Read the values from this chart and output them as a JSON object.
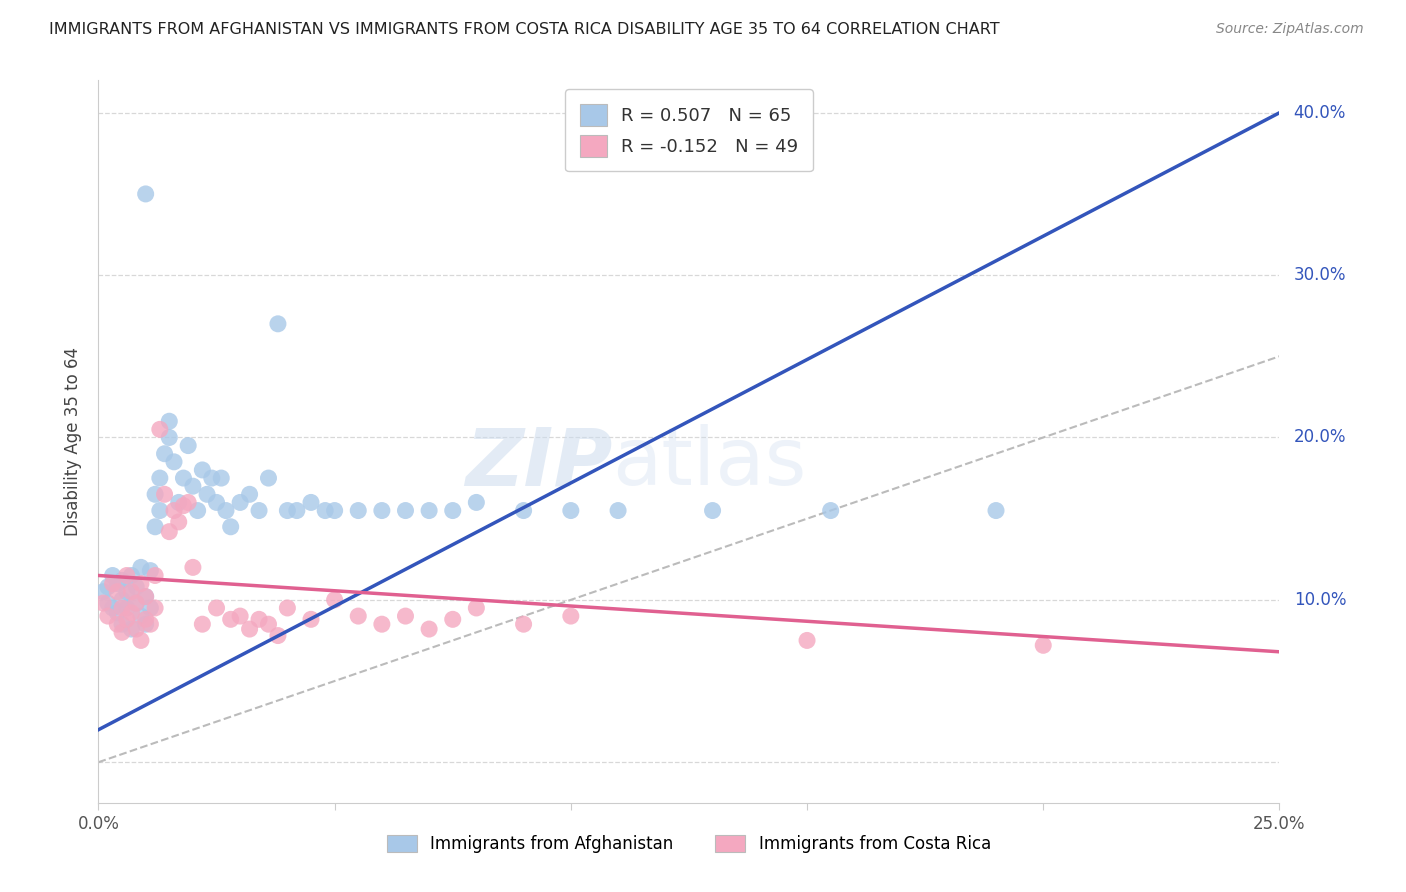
{
  "title": "IMMIGRANTS FROM AFGHANISTAN VS IMMIGRANTS FROM COSTA RICA DISABILITY AGE 35 TO 64 CORRELATION CHART",
  "source": "Source: ZipAtlas.com",
  "ylabel": "Disability Age 35 to 64",
  "legend_label1": "Immigrants from Afghanistan",
  "legend_label2": "Immigrants from Costa Rica",
  "R1": 0.507,
  "N1": 65,
  "R2": -0.152,
  "N2": 49,
  "xlim": [
    0.0,
    0.25
  ],
  "ylim": [
    -0.025,
    0.42
  ],
  "yticks": [
    0.0,
    0.1,
    0.2,
    0.3,
    0.4
  ],
  "xticks": [
    0.0,
    0.05,
    0.1,
    0.15,
    0.2,
    0.25
  ],
  "color_blue": "#a8c8e8",
  "color_pink": "#f4a8c0",
  "line_blue": "#3355bb",
  "line_pink": "#e06090",
  "diag_color": "#bbbbbb",
  "grid_color": "#d8d8d8",
  "background": "#ffffff",
  "blue_trend_x0": 0.0,
  "blue_trend_y0": 0.02,
  "blue_trend_x1": 0.25,
  "blue_trend_y1": 0.4,
  "pink_trend_x0": 0.0,
  "pink_trend_y0": 0.115,
  "pink_trend_x1": 0.25,
  "pink_trend_y1": 0.068,
  "blue_x": [
    0.001,
    0.002,
    0.002,
    0.003,
    0.003,
    0.004,
    0.004,
    0.005,
    0.005,
    0.005,
    0.006,
    0.006,
    0.007,
    0.007,
    0.008,
    0.008,
    0.009,
    0.009,
    0.01,
    0.01,
    0.01,
    0.011,
    0.011,
    0.012,
    0.012,
    0.013,
    0.013,
    0.014,
    0.015,
    0.015,
    0.016,
    0.017,
    0.018,
    0.019,
    0.02,
    0.021,
    0.022,
    0.023,
    0.024,
    0.025,
    0.026,
    0.027,
    0.028,
    0.03,
    0.032,
    0.034,
    0.036,
    0.038,
    0.04,
    0.042,
    0.045,
    0.048,
    0.05,
    0.055,
    0.06,
    0.065,
    0.07,
    0.075,
    0.08,
    0.09,
    0.1,
    0.11,
    0.13,
    0.155,
    0.19
  ],
  "blue_y": [
    0.105,
    0.098,
    0.108,
    0.095,
    0.115,
    0.092,
    0.11,
    0.1,
    0.085,
    0.112,
    0.095,
    0.105,
    0.082,
    0.115,
    0.098,
    0.108,
    0.09,
    0.12,
    0.085,
    0.102,
    0.35,
    0.118,
    0.095,
    0.145,
    0.165,
    0.155,
    0.175,
    0.19,
    0.2,
    0.21,
    0.185,
    0.16,
    0.175,
    0.195,
    0.17,
    0.155,
    0.18,
    0.165,
    0.175,
    0.16,
    0.175,
    0.155,
    0.145,
    0.16,
    0.165,
    0.155,
    0.175,
    0.27,
    0.155,
    0.155,
    0.16,
    0.155,
    0.155,
    0.155,
    0.155,
    0.155,
    0.155,
    0.155,
    0.16,
    0.155,
    0.155,
    0.155,
    0.155,
    0.155,
    0.155
  ],
  "pink_x": [
    0.001,
    0.002,
    0.003,
    0.004,
    0.004,
    0.005,
    0.005,
    0.006,
    0.006,
    0.007,
    0.007,
    0.008,
    0.008,
    0.009,
    0.009,
    0.01,
    0.01,
    0.011,
    0.012,
    0.012,
    0.013,
    0.014,
    0.015,
    0.016,
    0.017,
    0.018,
    0.019,
    0.02,
    0.022,
    0.025,
    0.028,
    0.03,
    0.032,
    0.034,
    0.036,
    0.038,
    0.04,
    0.045,
    0.05,
    0.055,
    0.06,
    0.065,
    0.07,
    0.075,
    0.08,
    0.09,
    0.1,
    0.15,
    0.2
  ],
  "pink_y": [
    0.098,
    0.09,
    0.11,
    0.085,
    0.105,
    0.08,
    0.095,
    0.088,
    0.115,
    0.092,
    0.105,
    0.082,
    0.098,
    0.075,
    0.11,
    0.088,
    0.102,
    0.085,
    0.115,
    0.095,
    0.205,
    0.165,
    0.142,
    0.155,
    0.148,
    0.158,
    0.16,
    0.12,
    0.085,
    0.095,
    0.088,
    0.09,
    0.082,
    0.088,
    0.085,
    0.078,
    0.095,
    0.088,
    0.1,
    0.09,
    0.085,
    0.09,
    0.082,
    0.088,
    0.095,
    0.085,
    0.09,
    0.075,
    0.072
  ]
}
